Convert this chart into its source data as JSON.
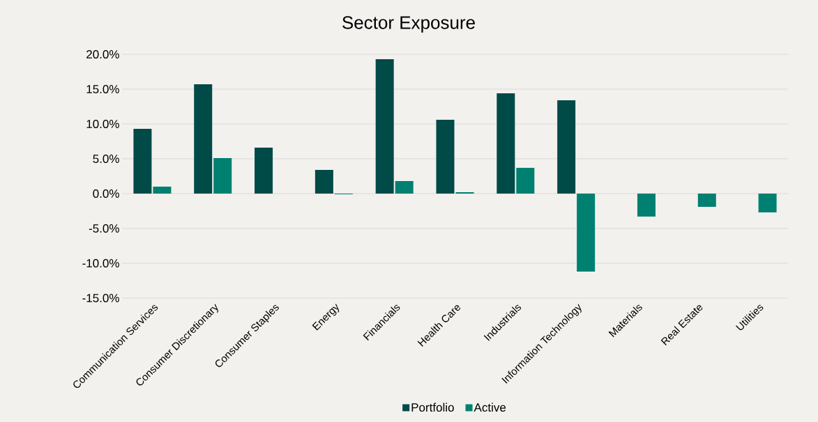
{
  "chart_data": {
    "type": "bar",
    "title": "Sector Exposure",
    "categories": [
      "Communication Services",
      "Consumer Discretionary",
      "Consumer Staples",
      "Energy",
      "Financials",
      "Health Care",
      "Industrials",
      "Information Technology",
      "Materials",
      "Real Estate",
      "Utilities"
    ],
    "series": [
      {
        "name": "Portfolio",
        "color": "#004a48",
        "values": [
          9.3,
          15.7,
          6.6,
          3.4,
          19.3,
          10.6,
          14.4,
          13.4,
          0.0,
          0.0,
          0.0
        ]
      },
      {
        "name": "Active",
        "color": "#008070",
        "values": [
          1.0,
          5.1,
          0.0,
          -0.1,
          1.8,
          0.2,
          3.7,
          -11.2,
          -3.3,
          -1.9,
          -2.7
        ]
      }
    ],
    "ylim": [
      -15,
      20
    ],
    "yticks": [
      {
        "value": -15,
        "label": "-15.0%"
      },
      {
        "value": -10,
        "label": "-10.0%"
      },
      {
        "value": -5,
        "label": "-5.0%"
      },
      {
        "value": 0,
        "label": "0.0%"
      },
      {
        "value": 5,
        "label": "5.0%"
      },
      {
        "value": 10,
        "label": "10.0%"
      },
      {
        "value": 15,
        "label": "15.0%"
      },
      {
        "value": 20,
        "label": "20.0%"
      }
    ],
    "grid": "y",
    "legend": "bottom"
  }
}
